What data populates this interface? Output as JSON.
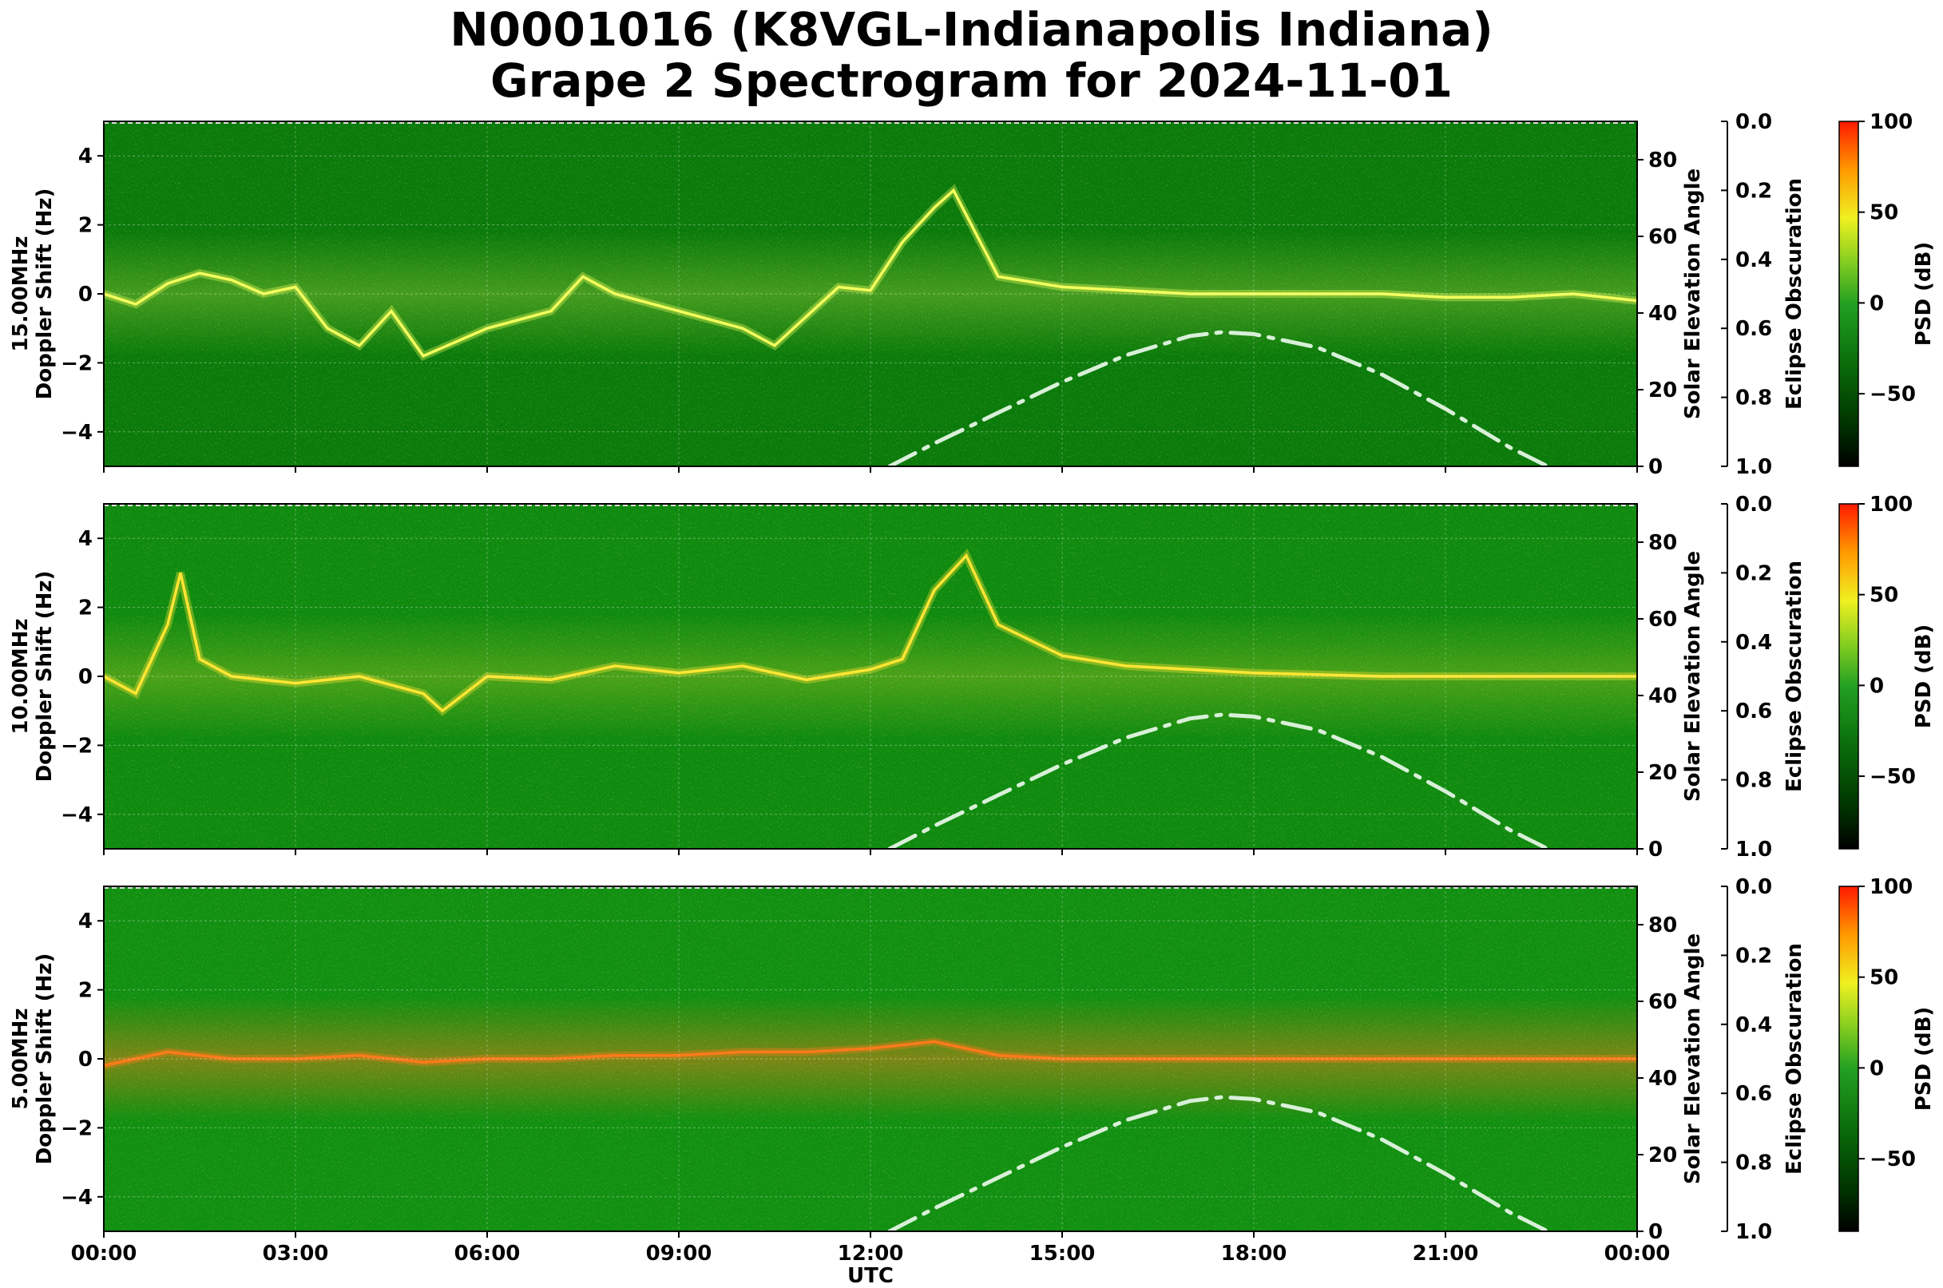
{
  "title": {
    "line1": "N0001016 (K8VGL-Indianapolis Indiana)",
    "line2": "Grape 2 Spectrogram for 2024-11-01"
  },
  "chart_data": [
    {
      "type": "heatmap",
      "frequency_label": "15.00MHz",
      "ylabel": "Doppler Shift (Hz)",
      "ylim": [
        -5,
        5
      ],
      "yticks": [
        "−4",
        "−2",
        "0",
        "2",
        "4"
      ],
      "xlim": [
        "00:00",
        "24:00"
      ],
      "right_axis_label": "Solar Elevation Angle",
      "right_ylim": [
        0,
        90
      ],
      "right_yticks": [
        "0",
        "20",
        "40",
        "60",
        "80"
      ],
      "eclipse_label": "Eclipse Obscuration",
      "eclipse_ylim": [
        1.0,
        0.0
      ],
      "eclipse_ticks": [
        "0.0",
        "0.2",
        "0.4",
        "0.6",
        "0.8",
        "1.0"
      ],
      "colorbar_label": "PSD (dB)",
      "colorbar_range": [
        -90,
        100
      ],
      "colorbar_ticks": [
        "100",
        "50",
        "0",
        "−50"
      ],
      "solar_elevation_curve": {
        "hours": [
          12.3,
          13,
          14,
          15,
          16,
          17,
          17.5,
          18,
          19,
          20,
          21,
          22,
          22.6
        ],
        "degrees": [
          0,
          6,
          14,
          22,
          29,
          34,
          35,
          34.5,
          31,
          24,
          15,
          5,
          0
        ]
      },
      "doppler_trace": {
        "hours": [
          0,
          0.5,
          1,
          1.5,
          2,
          2.5,
          3,
          3.5,
          4,
          4.5,
          5,
          6,
          7,
          7.5,
          8,
          9,
          10,
          10.5,
          11.5,
          12,
          12.5,
          13,
          13.3,
          14,
          15,
          16,
          17,
          18,
          19,
          20,
          21,
          22,
          23,
          24
        ],
        "values": [
          0,
          -0.3,
          0.3,
          0.6,
          0.4,
          0,
          0.2,
          -1.0,
          -1.5,
          -0.5,
          -1.8,
          -1,
          -0.5,
          0.5,
          0,
          -0.5,
          -1,
          -1.5,
          0.2,
          0.1,
          1.5,
          2.5,
          3.0,
          0.5,
          0.2,
          0.1,
          0,
          0,
          0,
          0,
          -0.1,
          -0.1,
          0,
          -0.2
        ]
      },
      "colors": {
        "background": "#0a7a0a",
        "trace": "#f3ff5c",
        "solar_curve": "#d8f0d8"
      }
    },
    {
      "type": "heatmap",
      "frequency_label": "10.00MHz",
      "ylabel": "Doppler Shift (Hz)",
      "ylim": [
        -5,
        5
      ],
      "yticks": [
        "−4",
        "−2",
        "0",
        "2",
        "4"
      ],
      "xlim": [
        "00:00",
        "24:00"
      ],
      "right_axis_label": "Solar Elevation Angle",
      "right_ylim": [
        0,
        90
      ],
      "right_yticks": [
        "0",
        "20",
        "40",
        "60",
        "80"
      ],
      "eclipse_label": "Eclipse Obscuration",
      "eclipse_ylim": [
        1.0,
        0.0
      ],
      "eclipse_ticks": [
        "0.0",
        "0.2",
        "0.4",
        "0.6",
        "0.8",
        "1.0"
      ],
      "colorbar_label": "PSD (dB)",
      "colorbar_range": [
        -90,
        100
      ],
      "colorbar_ticks": [
        "100",
        "50",
        "0",
        "−50"
      ],
      "solar_elevation_curve": {
        "hours": [
          12.3,
          13,
          14,
          15,
          16,
          17,
          17.5,
          18,
          19,
          20,
          21,
          22,
          22.6
        ],
        "degrees": [
          0,
          6,
          14,
          22,
          29,
          34,
          35,
          34.5,
          31,
          24,
          15,
          5,
          0
        ]
      },
      "doppler_trace": {
        "hours": [
          0,
          0.5,
          1,
          1.2,
          1.5,
          2,
          3,
          4,
          5,
          5.3,
          6,
          7,
          8,
          9,
          10,
          11,
          12,
          12.5,
          13,
          13.5,
          14,
          15,
          16,
          18,
          20,
          22,
          24
        ],
        "values": [
          0,
          -0.5,
          1.5,
          3.0,
          0.5,
          0,
          -0.2,
          0,
          -0.5,
          -1.0,
          0,
          -0.1,
          0.3,
          0.1,
          0.3,
          -0.1,
          0.2,
          0.5,
          2.5,
          3.5,
          1.5,
          0.6,
          0.3,
          0.1,
          0,
          0,
          0
        ]
      },
      "colors": {
        "background": "#0f8a0f",
        "trace": "#ffe633",
        "solar_curve": "#d8f0d8"
      }
    },
    {
      "type": "heatmap",
      "frequency_label": "5.00MHz",
      "ylabel": "Doppler Shift (Hz)",
      "ylim": [
        -5,
        5
      ],
      "yticks": [
        "−4",
        "−2",
        "0",
        "2",
        "4"
      ],
      "xlim": [
        "00:00",
        "24:00"
      ],
      "xticks": [
        "00:00",
        "03:00",
        "06:00",
        "09:00",
        "12:00",
        "15:00",
        "18:00",
        "21:00",
        "00:00"
      ],
      "xlabel": "UTC",
      "right_axis_label": "Solar Elevation Angle",
      "right_ylim": [
        0,
        90
      ],
      "right_yticks": [
        "0",
        "20",
        "40",
        "60",
        "80"
      ],
      "eclipse_label": "Eclipse Obscuration",
      "eclipse_ylim": [
        1.0,
        0.0
      ],
      "eclipse_ticks": [
        "0.0",
        "0.2",
        "0.4",
        "0.6",
        "0.8",
        "1.0"
      ],
      "colorbar_label": "PSD (dB)",
      "colorbar_range": [
        -90,
        100
      ],
      "colorbar_ticks": [
        "100",
        "50",
        "0",
        "−50"
      ],
      "solar_elevation_curve": {
        "hours": [
          12.3,
          13,
          14,
          15,
          16,
          17,
          17.5,
          18,
          19,
          20,
          21,
          22,
          22.6
        ],
        "degrees": [
          0,
          6,
          14,
          22,
          29,
          34,
          35,
          34.5,
          31,
          24,
          15,
          5,
          0
        ]
      },
      "doppler_trace": {
        "hours": [
          0,
          1,
          2,
          3,
          4,
          5,
          6,
          7,
          8,
          9,
          10,
          11,
          12,
          13,
          14,
          15,
          18,
          21,
          24
        ],
        "values": [
          -0.2,
          0.2,
          0,
          0,
          0.1,
          -0.1,
          0,
          0,
          0.1,
          0.1,
          0.2,
          0.2,
          0.3,
          0.5,
          0.1,
          0,
          0,
          0,
          0
        ]
      },
      "colors": {
        "background": "#118f11",
        "trace": "#ff7a1a",
        "solar_curve": "#d8f0d8"
      }
    }
  ]
}
